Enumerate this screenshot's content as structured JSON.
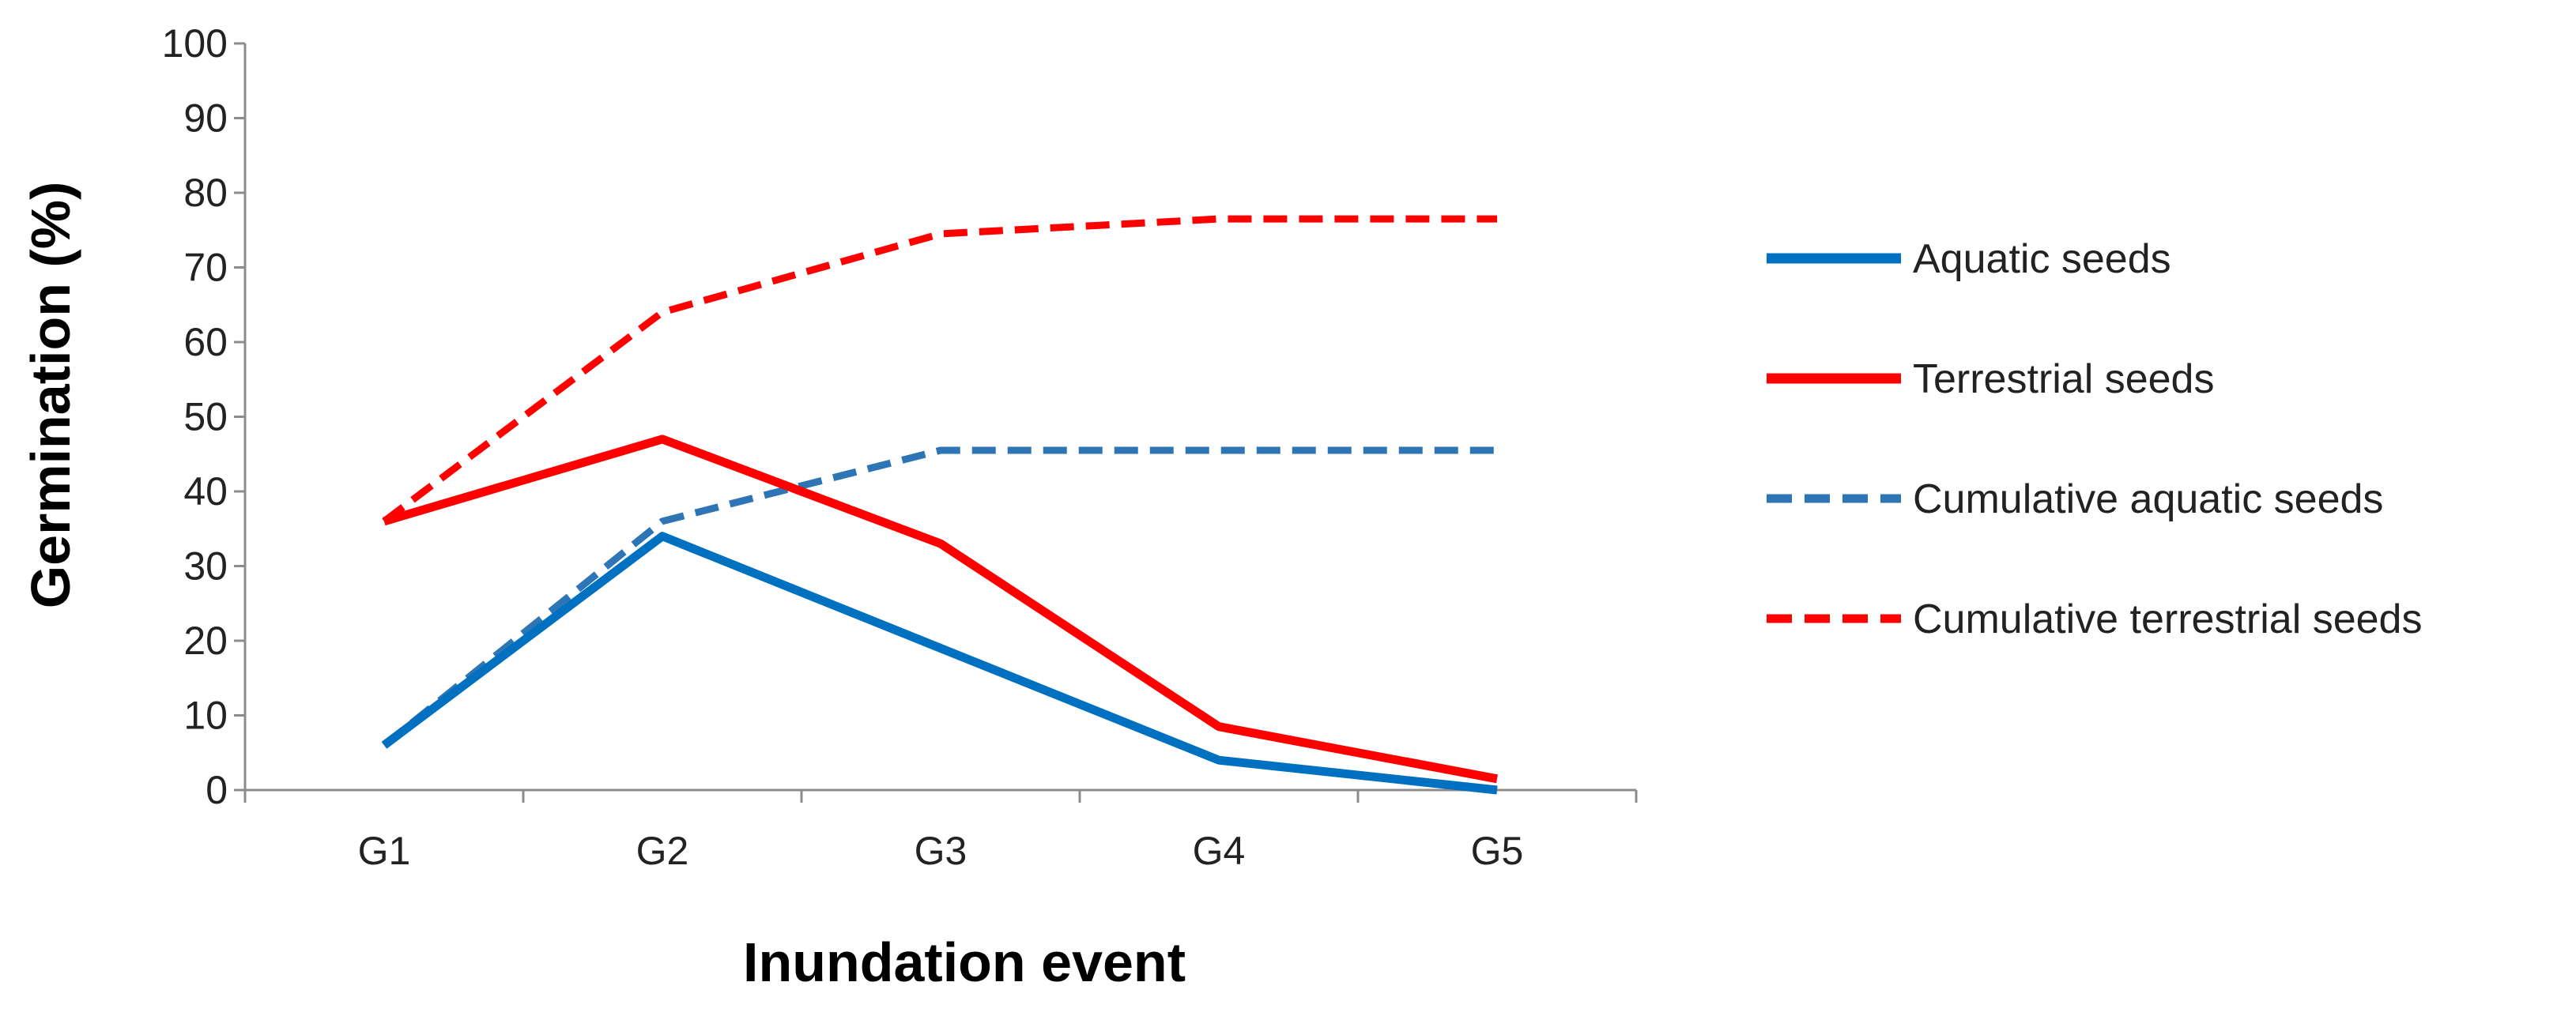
{
  "chart_data": {
    "type": "line",
    "title": "",
    "xlabel": "Inundation event",
    "ylabel": "Germination (%)",
    "categories": [
      "G1",
      "G2",
      "G3",
      "G4",
      "G5"
    ],
    "ylim": [
      0,
      100
    ],
    "yticks": [
      0,
      10,
      20,
      30,
      40,
      50,
      60,
      70,
      80,
      90,
      100
    ],
    "grid": false,
    "legend_position": "right",
    "series": [
      {
        "name": "Aquatic seeds",
        "values": [
          6,
          34,
          19,
          4,
          0
        ],
        "color": "#0070c0",
        "dash": "solid"
      },
      {
        "name": "Terrestrial seeds",
        "values": [
          36,
          47,
          33,
          8.5,
          1.5
        ],
        "color": "#ff0000",
        "dash": "solid"
      },
      {
        "name": "Cumulative aquatic seeds",
        "values": [
          6,
          36,
          45.5,
          45.5,
          45.5
        ],
        "color": "#2e75b6",
        "dash": "dashed"
      },
      {
        "name": "Cumulative terrestrial seeds",
        "values": [
          36,
          64,
          74.5,
          76.5,
          76.5
        ],
        "color": "#ff0000",
        "dash": "dashed"
      }
    ]
  }
}
